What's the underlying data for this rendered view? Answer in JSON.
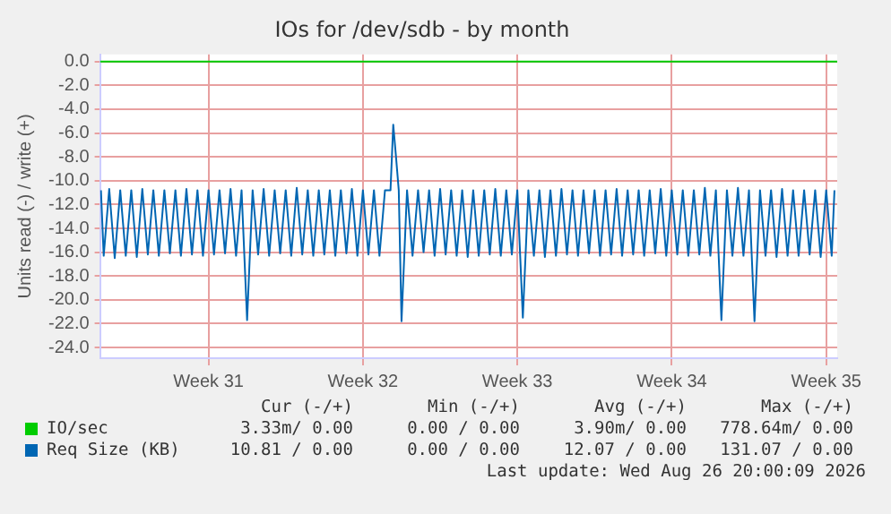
{
  "chart_data": {
    "type": "line",
    "title": "IOs for /dev/sdb - by month",
    "ylabel": "Units read (-) / write (+)",
    "xlim": [
      "2026-07-22T02:00",
      "2026-08-24T12:00"
    ],
    "xticks": [
      {
        "value": "2026-07-27",
        "label": "Week 31"
      },
      {
        "value": "2026-08-03",
        "label": "Week 32"
      },
      {
        "value": "2026-08-10",
        "label": "Week 33"
      },
      {
        "value": "2026-08-17",
        "label": "Week 34"
      },
      {
        "value": "2026-08-24",
        "label": "Week 35"
      }
    ],
    "ylim": [
      -24.9,
      0.6
    ],
    "yticks": [
      {
        "value": 0,
        "label": "0.0"
      },
      {
        "value": -2,
        "label": "-2.0"
      },
      {
        "value": -4,
        "label": "-4.0"
      },
      {
        "value": -6,
        "label": "-6.0"
      },
      {
        "value": -8,
        "label": "-8.0"
      },
      {
        "value": -10,
        "label": "-10.0"
      },
      {
        "value": -12,
        "label": "-12.0"
      },
      {
        "value": -14,
        "label": "-14.0"
      },
      {
        "value": -16,
        "label": "-16.0"
      },
      {
        "value": -18,
        "label": "-18.0"
      },
      {
        "value": -20,
        "label": "-20.0"
      },
      {
        "value": -22,
        "label": "-22.0"
      },
      {
        "value": -24,
        "label": "-24.0"
      }
    ],
    "grid": true,
    "legend": "bottom",
    "marker": "none",
    "line_style": "solid",
    "series": [
      {
        "name": "IO/sec",
        "color": "#00cc00",
        "x": [
          "2026-07-22T02:00",
          "2026-08-24T12:00"
        ],
        "values": [
          0,
          0
        ]
      },
      {
        "name": "Req Size (KB)",
        "color": "#0066b3",
        "x": [
          "2026-07-22T03:00",
          "2026-07-22T06:00",
          "2026-07-22T12:00",
          "2026-07-22T18:00",
          "2026-07-23T00:00",
          "2026-07-23T06:00",
          "2026-07-23T12:00",
          "2026-07-23T18:00",
          "2026-07-24T00:00",
          "2026-07-24T06:00",
          "2026-07-24T12:00",
          "2026-07-24T18:00",
          "2026-07-25T00:00",
          "2026-07-25T06:00",
          "2026-07-25T12:00",
          "2026-07-25T18:00",
          "2026-07-26T00:00",
          "2026-07-26T06:00",
          "2026-07-26T12:00",
          "2026-07-26T18:00",
          "2026-07-27T00:00",
          "2026-07-27T06:00",
          "2026-07-27T12:00",
          "2026-07-27T18:00",
          "2026-07-28T00:00",
          "2026-07-28T06:00",
          "2026-07-28T12:00",
          "2026-07-28T18:00",
          "2026-07-29T00:00",
          "2026-07-29T06:00",
          "2026-07-29T12:00",
          "2026-07-29T18:00",
          "2026-07-30T00:00",
          "2026-07-30T06:00",
          "2026-07-30T12:00",
          "2026-07-30T18:00",
          "2026-07-31T00:00",
          "2026-07-31T06:00",
          "2026-07-31T12:00",
          "2026-07-31T18:00",
          "2026-08-01T00:00",
          "2026-08-01T06:00",
          "2026-08-01T12:00",
          "2026-08-01T18:00",
          "2026-08-02T00:00",
          "2026-08-02T06:00",
          "2026-08-02T12:00",
          "2026-08-02T18:00",
          "2026-08-03T00:00",
          "2026-08-03T06:00",
          "2026-08-03T12:00",
          "2026-08-03T18:00",
          "2026-08-04T00:00",
          "2026-08-04T06:00",
          "2026-08-04T09:00",
          "2026-08-04T12:00",
          "2026-08-04T15:00",
          "2026-08-04T18:00",
          "2026-08-05T00:00",
          "2026-08-05T06:00",
          "2026-08-05T12:00",
          "2026-08-05T18:00",
          "2026-08-06T00:00",
          "2026-08-06T06:00",
          "2026-08-06T12:00",
          "2026-08-06T18:00",
          "2026-08-07T00:00",
          "2026-08-07T06:00",
          "2026-08-07T12:00",
          "2026-08-07T18:00",
          "2026-08-08T00:00",
          "2026-08-08T06:00",
          "2026-08-08T12:00",
          "2026-08-08T18:00",
          "2026-08-09T00:00",
          "2026-08-09T06:00",
          "2026-08-09T12:00",
          "2026-08-09T18:00",
          "2026-08-10T00:00",
          "2026-08-10T06:00",
          "2026-08-10T12:00",
          "2026-08-10T18:00",
          "2026-08-11T00:00",
          "2026-08-11T06:00",
          "2026-08-11T12:00",
          "2026-08-11T18:00",
          "2026-08-12T00:00",
          "2026-08-12T06:00",
          "2026-08-12T12:00",
          "2026-08-12T18:00",
          "2026-08-13T00:00",
          "2026-08-13T06:00",
          "2026-08-13T12:00",
          "2026-08-13T18:00",
          "2026-08-14T00:00",
          "2026-08-14T06:00",
          "2026-08-14T12:00",
          "2026-08-14T18:00",
          "2026-08-15T00:00",
          "2026-08-15T06:00",
          "2026-08-15T12:00",
          "2026-08-15T18:00",
          "2026-08-16T00:00",
          "2026-08-16T06:00",
          "2026-08-16T12:00",
          "2026-08-16T18:00",
          "2026-08-17T00:00",
          "2026-08-17T06:00",
          "2026-08-17T12:00",
          "2026-08-17T18:00",
          "2026-08-18T00:00",
          "2026-08-18T06:00",
          "2026-08-18T12:00",
          "2026-08-18T18:00",
          "2026-08-19T00:00",
          "2026-08-19T06:00",
          "2026-08-19T12:00",
          "2026-08-19T18:00",
          "2026-08-20T00:00",
          "2026-08-20T06:00",
          "2026-08-20T12:00",
          "2026-08-20T18:00",
          "2026-08-21T00:00",
          "2026-08-21T06:00",
          "2026-08-21T12:00",
          "2026-08-21T18:00",
          "2026-08-22T00:00",
          "2026-08-22T06:00",
          "2026-08-22T12:00",
          "2026-08-22T18:00",
          "2026-08-23T00:00",
          "2026-08-23T06:00",
          "2026-08-23T12:00",
          "2026-08-23T18:00",
          "2026-08-24T00:00",
          "2026-08-24T06:00",
          "2026-08-24T09:00"
        ],
        "values": [
          -10.8,
          -16.3,
          -10.7,
          -16.5,
          -10.8,
          -16.3,
          -10.8,
          -16.4,
          -10.7,
          -16.2,
          -10.8,
          -16.3,
          -10.8,
          -16.1,
          -10.8,
          -16.3,
          -10.7,
          -16.2,
          -10.8,
          -16.3,
          -10.8,
          -16.2,
          -10.8,
          -16.1,
          -10.7,
          -16.3,
          -10.8,
          -21.7,
          -10.8,
          -16.2,
          -10.7,
          -16.3,
          -10.8,
          -16.1,
          -10.8,
          -16.3,
          -10.6,
          -16.2,
          -10.8,
          -16.3,
          -10.8,
          -16.2,
          -10.8,
          -16.3,
          -10.8,
          -16.1,
          -10.7,
          -16.3,
          -10.8,
          -16.2,
          -10.8,
          -16.3,
          -10.8,
          -10.8,
          -5.3,
          -8.0,
          -10.8,
          -21.8,
          -10.8,
          -16.3,
          -10.8,
          -16.0,
          -10.8,
          -16.3,
          -10.7,
          -16.2,
          -10.8,
          -16.3,
          -10.8,
          -16.4,
          -10.8,
          -16.3,
          -10.8,
          -16.2,
          -10.7,
          -16.3,
          -10.8,
          -16.2,
          -10.8,
          -21.5,
          -10.8,
          -16.3,
          -10.8,
          -16.4,
          -10.8,
          -16.3,
          -10.7,
          -16.2,
          -10.8,
          -16.3,
          -10.8,
          -16.1,
          -10.8,
          -16.3,
          -10.8,
          -16.2,
          -10.7,
          -16.3,
          -10.8,
          -16.2,
          -10.8,
          -16.3,
          -10.8,
          -16.1,
          -10.7,
          -16.3,
          -10.8,
          -16.2,
          -10.8,
          -16.3,
          -10.8,
          -16.2,
          -10.6,
          -16.3,
          -10.8,
          -21.7,
          -10.8,
          -16.3,
          -10.6,
          -16.3,
          -10.8,
          -21.8,
          -10.8,
          -16.3,
          -10.8,
          -16.4,
          -10.7,
          -16.3,
          -10.8,
          -16.3,
          -10.8,
          -16.2,
          -10.8,
          -16.4,
          -10.8,
          -16.3,
          -10.8
        ]
      }
    ],
    "annotations": [
      "Cur (-/+)",
      "Min (-/+)",
      "Avg (-/+)",
      "Max (-/+)",
      "3.33m/ 0.00",
      "0.00 / 0.00",
      "3.90m/ 0.00",
      "778.64m/ 0.00",
      "10.81 / 0.00",
      "0.00 / 0.00",
      "12.07 / 0.00",
      "131.07 / 0.00",
      "Last update: Wed Aug 26 20:00:09 2026"
    ]
  }
}
